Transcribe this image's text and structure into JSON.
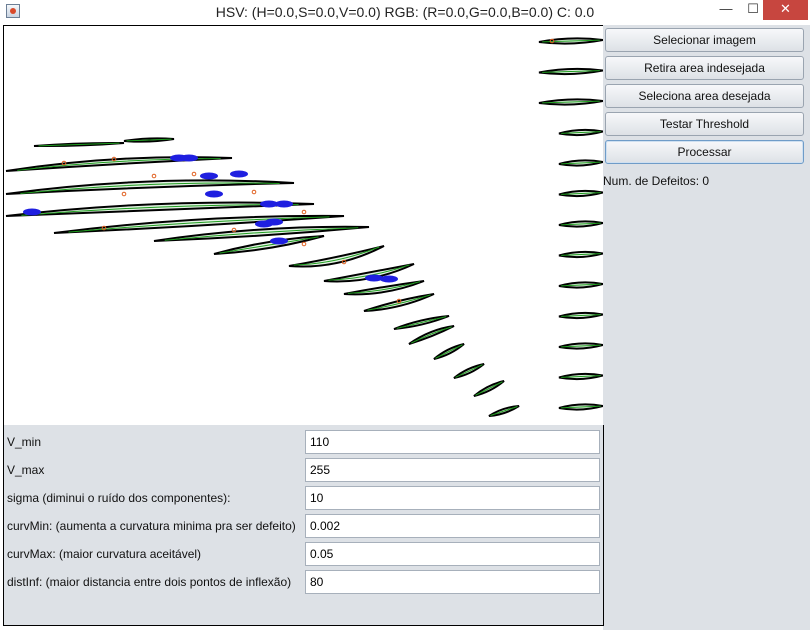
{
  "window": {
    "title": "HSV: (H=0.0,S=0.0,V=0.0) RGB: (R=0.0,G=0.0,B=0.0) C: 0.0",
    "minimize_glyph": "—",
    "maximize_glyph": "☐",
    "close_glyph": "✕"
  },
  "buttons": [
    {
      "label": "Selecionar imagem"
    },
    {
      "label": "Retira area indesejada"
    },
    {
      "label": "Seleciona area desejada"
    },
    {
      "label": "Testar Threshold"
    },
    {
      "label": "Processar"
    }
  ],
  "status": {
    "defects_label": "Num. de Defeitos: 0"
  },
  "form": {
    "fields": [
      {
        "label": "V_min",
        "value": "110"
      },
      {
        "label": "V_max",
        "value": "255"
      },
      {
        "label": "sigma (diminui o ruído dos componentes):",
        "value": "10"
      },
      {
        "label": "curvMin: (aumenta a curvatura minima pra ser defeito)",
        "value": "0.002"
      },
      {
        "label": "curvMax: (maior curvatura aceitável)",
        "value": "0.05"
      },
      {
        "label": "distInf: (maior distancia entre dois pontos de inflexão)",
        "value": "80"
      }
    ]
  },
  "colors": {
    "contour_stroke": "#000000",
    "contour_fill": "#e2f2e2",
    "skeleton": "#1f9d1f",
    "defect_mark": "#1f1fe0",
    "inflection_mark": "#e06020"
  }
}
